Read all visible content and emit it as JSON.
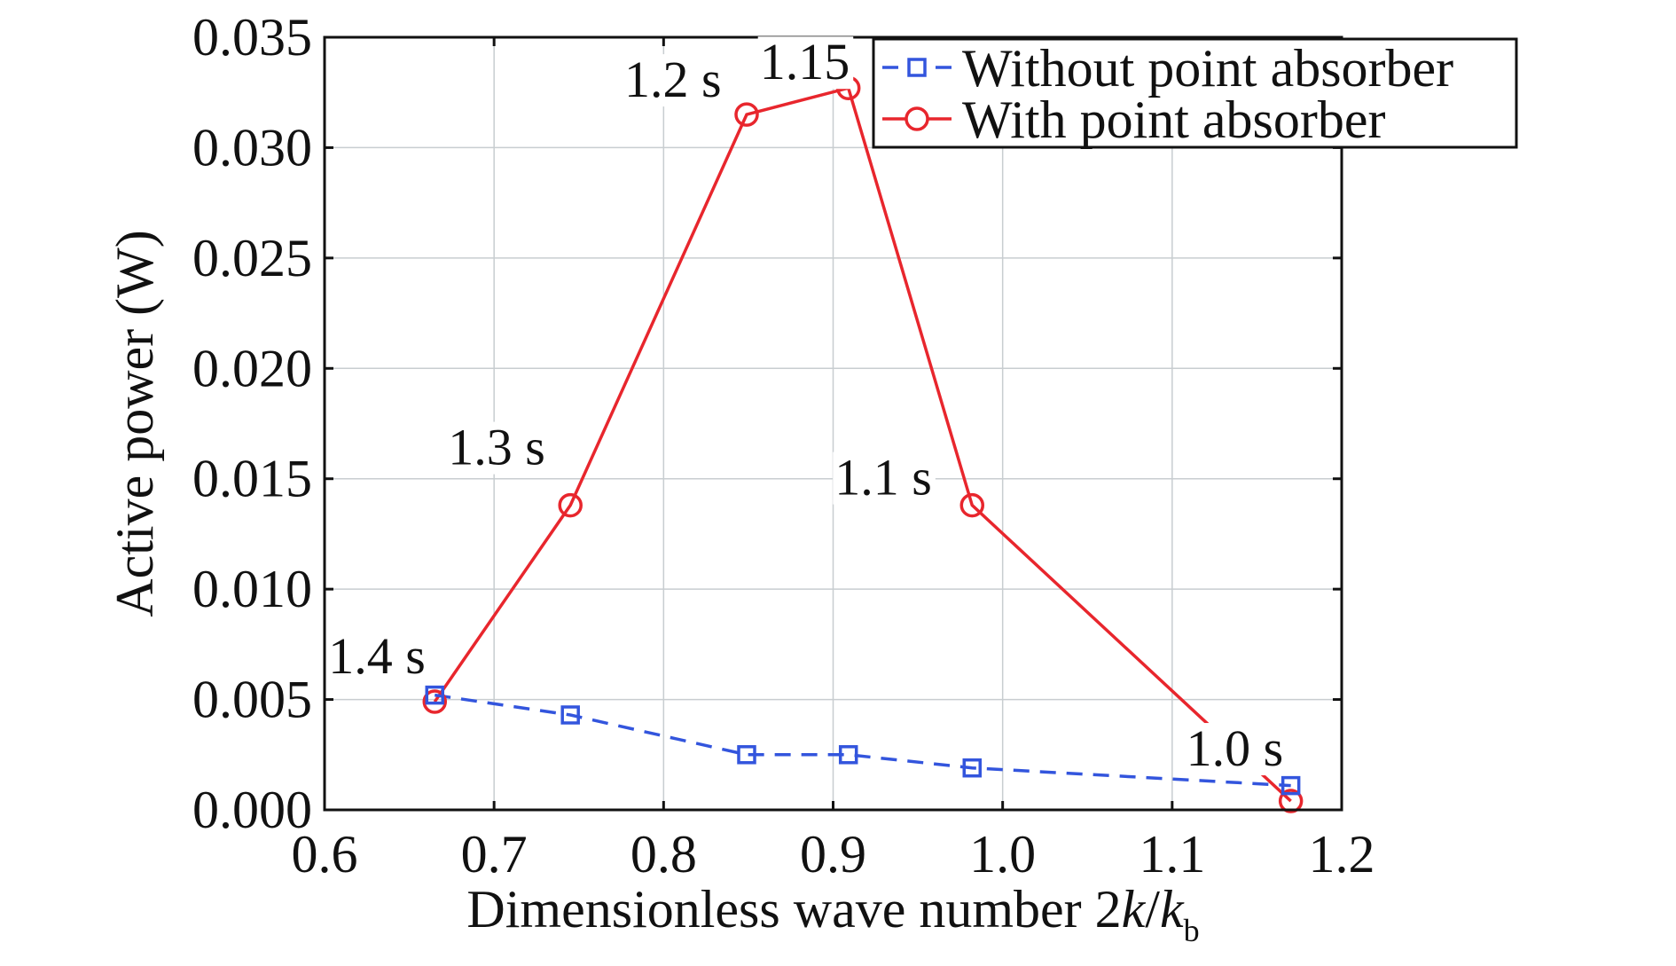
{
  "chart_data": {
    "type": "line",
    "title": "",
    "xlabel": "Dimensionless wave number 2k/k",
    "xlabel_parts": {
      "prefix": "Dimensionless wave number 2",
      "k1": "k",
      "slash": "/",
      "k2": "k",
      "subscript": "b"
    },
    "ylabel": "Active power (W)",
    "xlim": [
      0.6,
      1.2
    ],
    "ylim": [
      0.0,
      0.035
    ],
    "xticks": [
      0.6,
      0.7,
      0.8,
      0.9,
      1.0,
      1.1,
      1.2
    ],
    "xtick_labels": [
      "0.6",
      "0.7",
      "0.8",
      "0.9",
      "1.0",
      "1.1",
      "1.2"
    ],
    "yticks": [
      0.0,
      0.005,
      0.01,
      0.015,
      0.02,
      0.025,
      0.03,
      0.035
    ],
    "ytick_labels": [
      "0.000",
      "0.005",
      "0.010",
      "0.015",
      "0.020",
      "0.025",
      "0.030",
      "0.035"
    ],
    "grid": true,
    "legend_position": "top-right",
    "series": [
      {
        "name": "Without point absorber",
        "color": "#3355dd",
        "line_style": "dashed",
        "marker": "square",
        "x": [
          0.665,
          0.745,
          0.849,
          0.909,
          0.982,
          1.17
        ],
        "y": [
          0.0052,
          0.0043,
          0.0025,
          0.0025,
          0.0019,
          0.0011
        ]
      },
      {
        "name": "With point absorber",
        "color": "#e8262d",
        "line_style": "solid",
        "marker": "circle",
        "x": [
          0.665,
          0.745,
          0.849,
          0.909,
          0.982,
          1.17
        ],
        "y": [
          0.0049,
          0.0138,
          0.0315,
          0.0327,
          0.0138,
          0.0004
        ]
      }
    ],
    "annotations": [
      {
        "text": "1.4 s",
        "x": 0.665,
        "y": 0.0049
      },
      {
        "text": "1.3 s",
        "x": 0.745,
        "y": 0.0138
      },
      {
        "text": "1.2 s",
        "x": 0.849,
        "y": 0.0315
      },
      {
        "text": "1.15",
        "x": 0.909,
        "y": 0.0327
      },
      {
        "text": "1.1 s",
        "x": 0.982,
        "y": 0.0138
      },
      {
        "text": "1.0 s",
        "x": 1.17,
        "y": 0.0004
      }
    ]
  }
}
